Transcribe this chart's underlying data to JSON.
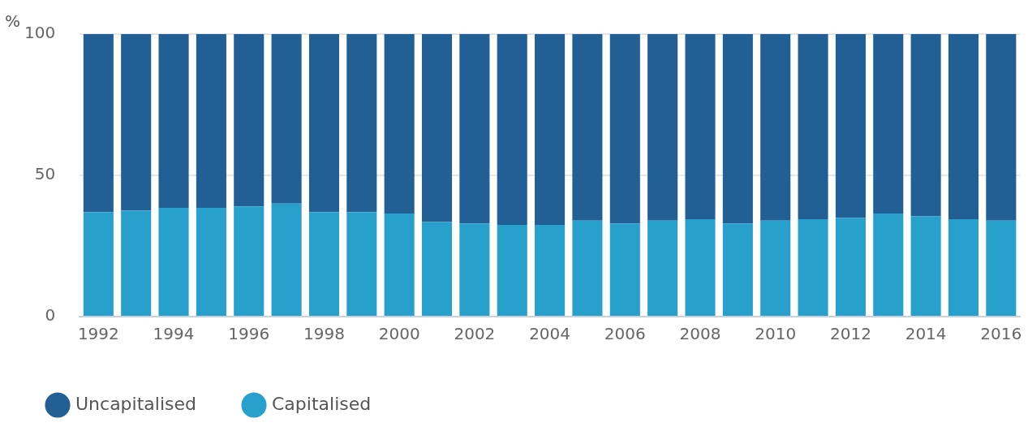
{
  "chart_data": {
    "type": "bar",
    "stacked": true,
    "ylabel": "%",
    "categories": [
      "1992",
      null,
      "1994",
      null,
      "1996",
      null,
      "1998",
      null,
      "2000",
      null,
      "2002",
      null,
      "2004",
      null,
      "2006",
      null,
      "2008",
      null,
      "2010",
      null,
      "2012",
      null,
      "2014",
      null,
      "2016"
    ],
    "series": [
      {
        "name": "Capitalised",
        "color": "#27a0cc",
        "values": [
          37,
          37.5,
          38.5,
          38.5,
          39,
          40,
          37,
          37,
          36.5,
          33.5,
          33,
          32.5,
          32.5,
          34,
          33,
          34,
          34.5,
          33,
          34,
          34.5,
          35,
          36.5,
          35.5,
          34.5,
          34
        ]
      },
      {
        "name": "Uncapitalised",
        "color": "#215f94",
        "values": [
          63,
          62.5,
          61.5,
          61.5,
          61,
          60,
          63,
          63,
          63.5,
          66.5,
          67,
          67.5,
          67.5,
          66,
          67,
          66,
          65.5,
          67,
          66,
          65.5,
          65,
          63.5,
          64.5,
          65.5,
          66
        ]
      }
    ],
    "ylim": [
      0,
      100
    ],
    "yticks": [
      0,
      50,
      100
    ],
    "grid": "y",
    "legend": "bottom left"
  }
}
